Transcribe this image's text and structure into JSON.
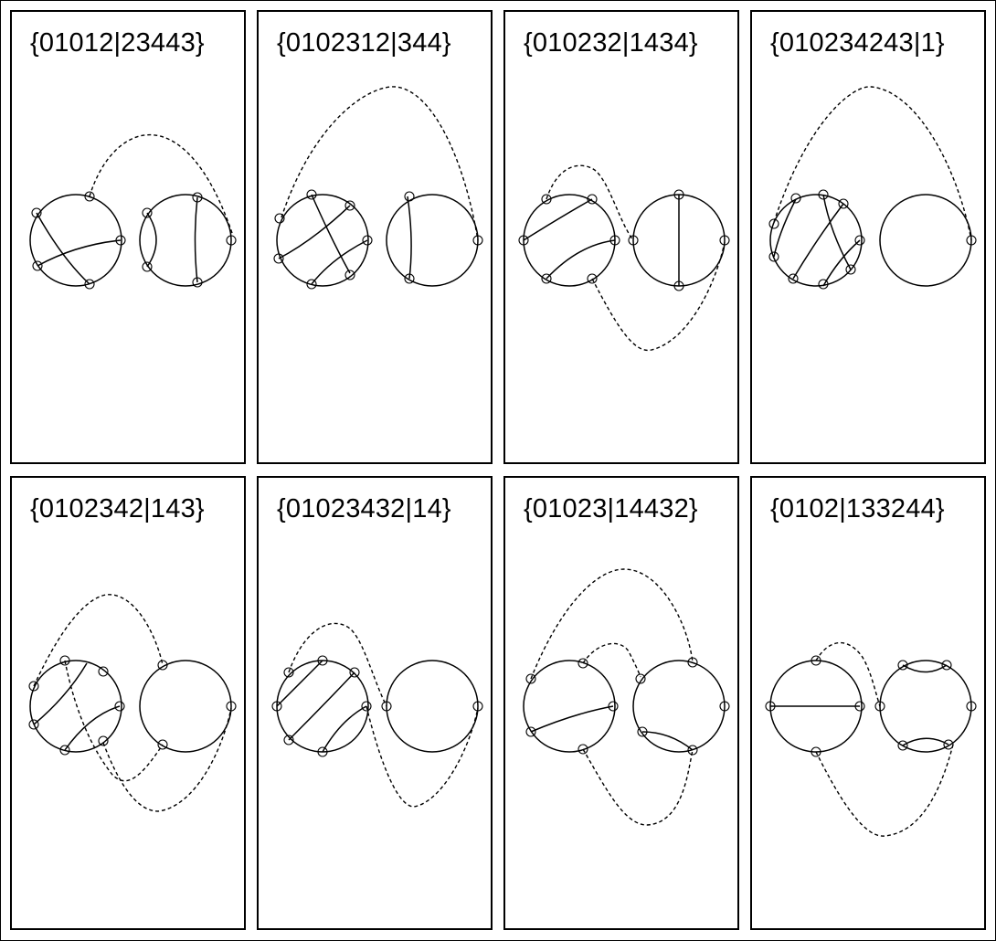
{
  "panels": [
    {
      "label": "{01012|23443}"
    },
    {
      "label": "{0102312|344}"
    },
    {
      "label": "{010232|1434}"
    },
    {
      "label": "{010234243|1}"
    },
    {
      "label": "{0102342|143}"
    },
    {
      "label": "{01023432|14}"
    },
    {
      "label": "{01023|14432}"
    },
    {
      "label": "{0102|133244}"
    }
  ]
}
